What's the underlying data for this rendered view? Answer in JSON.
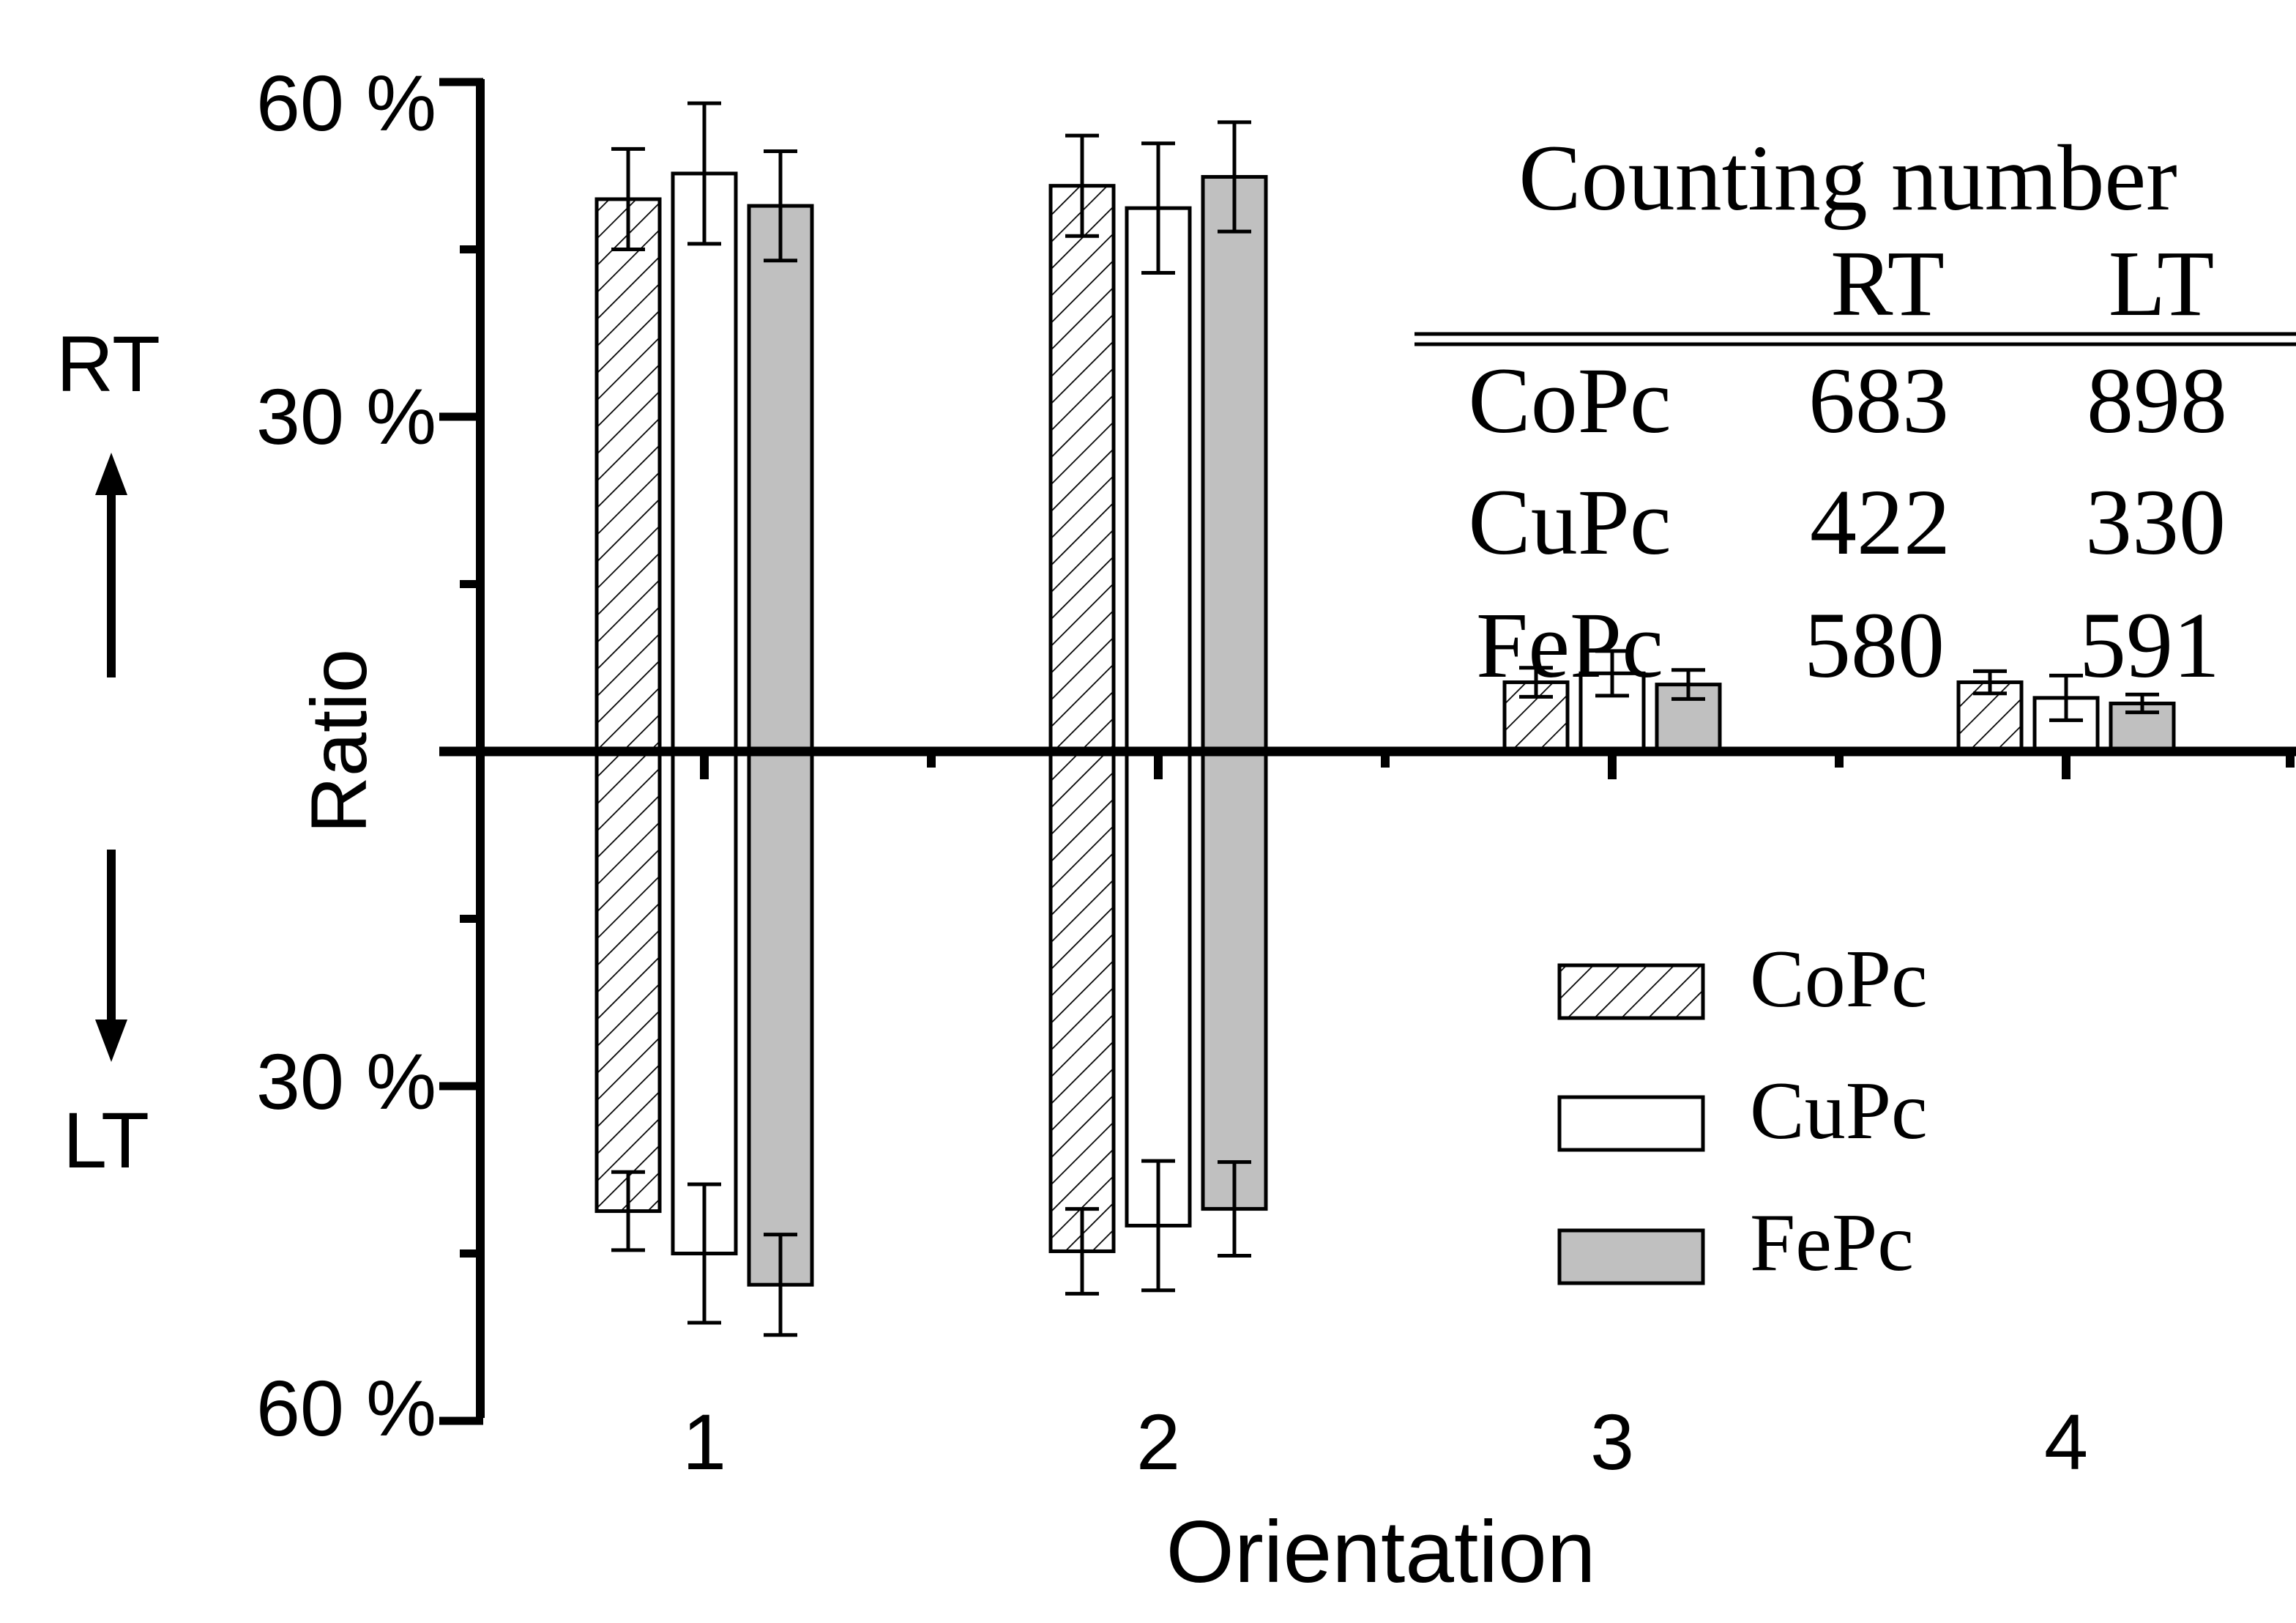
{
  "chart_data": {
    "type": "bar",
    "xlabel": "Orientation",
    "ylabel": "Ratio",
    "categories": [
      "1",
      "2",
      "3",
      "4"
    ],
    "ylim": [
      -60,
      60
    ],
    "y_tick_labels": [
      {
        "value": 60,
        "label": "60 %"
      },
      {
        "value": 30,
        "label": "30 %"
      },
      {
        "value": -30,
        "label": "30 %"
      },
      {
        "value": -60,
        "label": "60 %"
      }
    ],
    "direction_labels": {
      "up": "RT",
      "down": "LT"
    },
    "series": [
      {
        "name": "CoPc",
        "fill": "hatch",
        "rt": [
          49.5,
          50.7,
          6.2,
          6.2
        ],
        "rt_err": [
          4.5,
          4.5,
          1.3,
          1.0
        ],
        "lt": [
          41.2,
          44.8,
          0,
          0
        ],
        "lt_err": [
          3.5,
          3.8,
          0,
          0
        ]
      },
      {
        "name": "CuPc",
        "fill": "#ffffff",
        "rt": [
          51.8,
          48.7,
          7.0,
          4.8
        ],
        "rt_err": [
          6.3,
          5.8,
          2.0,
          2.0
        ],
        "lt": [
          45.0,
          42.5,
          0,
          0
        ],
        "lt_err": [
          6.2,
          5.8,
          0,
          0
        ]
      },
      {
        "name": "FePc",
        "fill": "#c0c0c0",
        "rt": [
          48.9,
          51.5,
          6.0,
          4.3
        ],
        "rt_err": [
          4.9,
          4.9,
          1.3,
          0.8
        ],
        "lt": [
          47.8,
          41.0,
          0,
          0
        ],
        "lt_err": [
          4.5,
          4.2,
          0,
          0
        ]
      }
    ],
    "table": {
      "title": "Counting number",
      "columns": [
        "RT",
        "LT"
      ],
      "rows": [
        {
          "name": "CoPc",
          "rt": "683",
          "lt": "898"
        },
        {
          "name": "CuPc",
          "rt": "422",
          "lt": "330"
        },
        {
          "name": "FePc",
          "rt": "580",
          "lt": "591"
        }
      ]
    },
    "legend": {
      "position": "right",
      "entries": [
        "CoPc",
        "CuPc",
        "FePc"
      ]
    }
  }
}
